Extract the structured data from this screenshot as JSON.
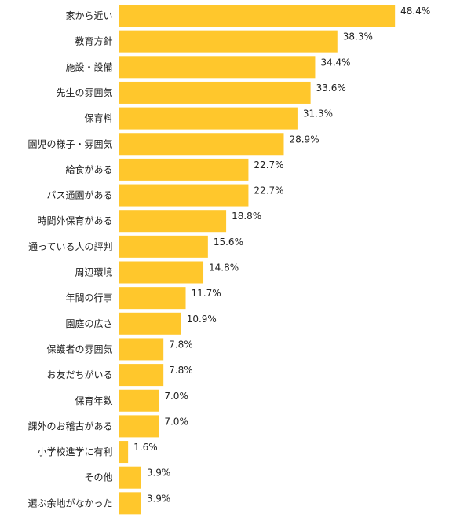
{
  "colors": {
    "bar": "#FFC72C",
    "axis": "#8C8C8C",
    "text": "#222222"
  },
  "chart_data": {
    "type": "bar",
    "orientation": "horizontal",
    "value_suffix": "%",
    "xlim": [
      0,
      52.3
    ],
    "categories": [
      "家から近い",
      "教育方針",
      "施設・設備",
      "先生の雰囲気",
      "保育料",
      "園児の様子・雰囲気",
      "給食がある",
      "バス通園がある",
      "時間外保育がある",
      "通っている人の評判",
      "周辺環境",
      "年間の行事",
      "園庭の広さ",
      "保護者の雰囲気",
      "お友だちがいる",
      "保育年数",
      "課外のお稽古がある",
      "小学校進学に有利",
      "その他",
      "選ぶ余地がなかった"
    ],
    "values": [
      48.4,
      38.3,
      34.4,
      33.6,
      31.3,
      28.9,
      22.7,
      22.7,
      18.8,
      15.6,
      14.8,
      11.7,
      10.9,
      7.8,
      7.8,
      7.0,
      7.0,
      1.6,
      3.9,
      3.9
    ]
  }
}
